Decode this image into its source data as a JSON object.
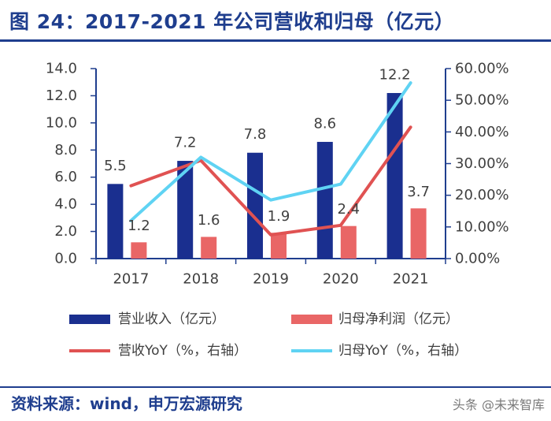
{
  "header": {
    "title": "图 24：2017-2021 年公司营收和归母（亿元）"
  },
  "colors": {
    "brand": "#1f3e8e",
    "revenue": "#1a2f8f",
    "profit": "#e96666",
    "revenue_yoy": "#e05252",
    "profit_yoy": "#5fd3f3",
    "axis": "#1f3e8e"
  },
  "chart_data": {
    "type": "bar",
    "categories": [
      "2017",
      "2018",
      "2019",
      "2020",
      "2021"
    ],
    "series": [
      {
        "name": "营业收入（亿元）",
        "kind": "bar",
        "axis": "left",
        "values": [
          5.5,
          7.2,
          7.8,
          8.6,
          12.2
        ],
        "labels": [
          "5.5",
          "7.2",
          "7.8",
          "8.6",
          "12.2"
        ]
      },
      {
        "name": "归母净利润（亿元）",
        "kind": "bar",
        "axis": "left",
        "values": [
          1.2,
          1.6,
          1.9,
          2.4,
          3.7
        ],
        "labels": [
          "1.2",
          "1.6",
          "1.9",
          "2.4",
          "3.7"
        ]
      },
      {
        "name": "营收YoY（%，右轴）",
        "kind": "line",
        "axis": "right",
        "values": [
          23.0,
          31.0,
          7.5,
          10.5,
          41.5
        ]
      },
      {
        "name": "归母YoY（%，右轴）",
        "kind": "line",
        "axis": "right",
        "values": [
          12.0,
          32.0,
          18.5,
          23.5,
          55.5
        ]
      }
    ],
    "ylim": [
      0,
      14
    ],
    "yticks": [
      "0.0",
      "2.0",
      "4.0",
      "6.0",
      "8.0",
      "10.0",
      "12.0",
      "14.0"
    ],
    "y2lim": [
      0,
      60
    ],
    "y2ticks": [
      "0.00%",
      "10.00%",
      "20.00%",
      "30.00%",
      "40.00%",
      "50.00%",
      "60.00%"
    ],
    "legend_position": "bottom"
  },
  "footer": {
    "source": "资料来源：wind，申万宏源研究",
    "watermark": "头条 @未来智库"
  }
}
